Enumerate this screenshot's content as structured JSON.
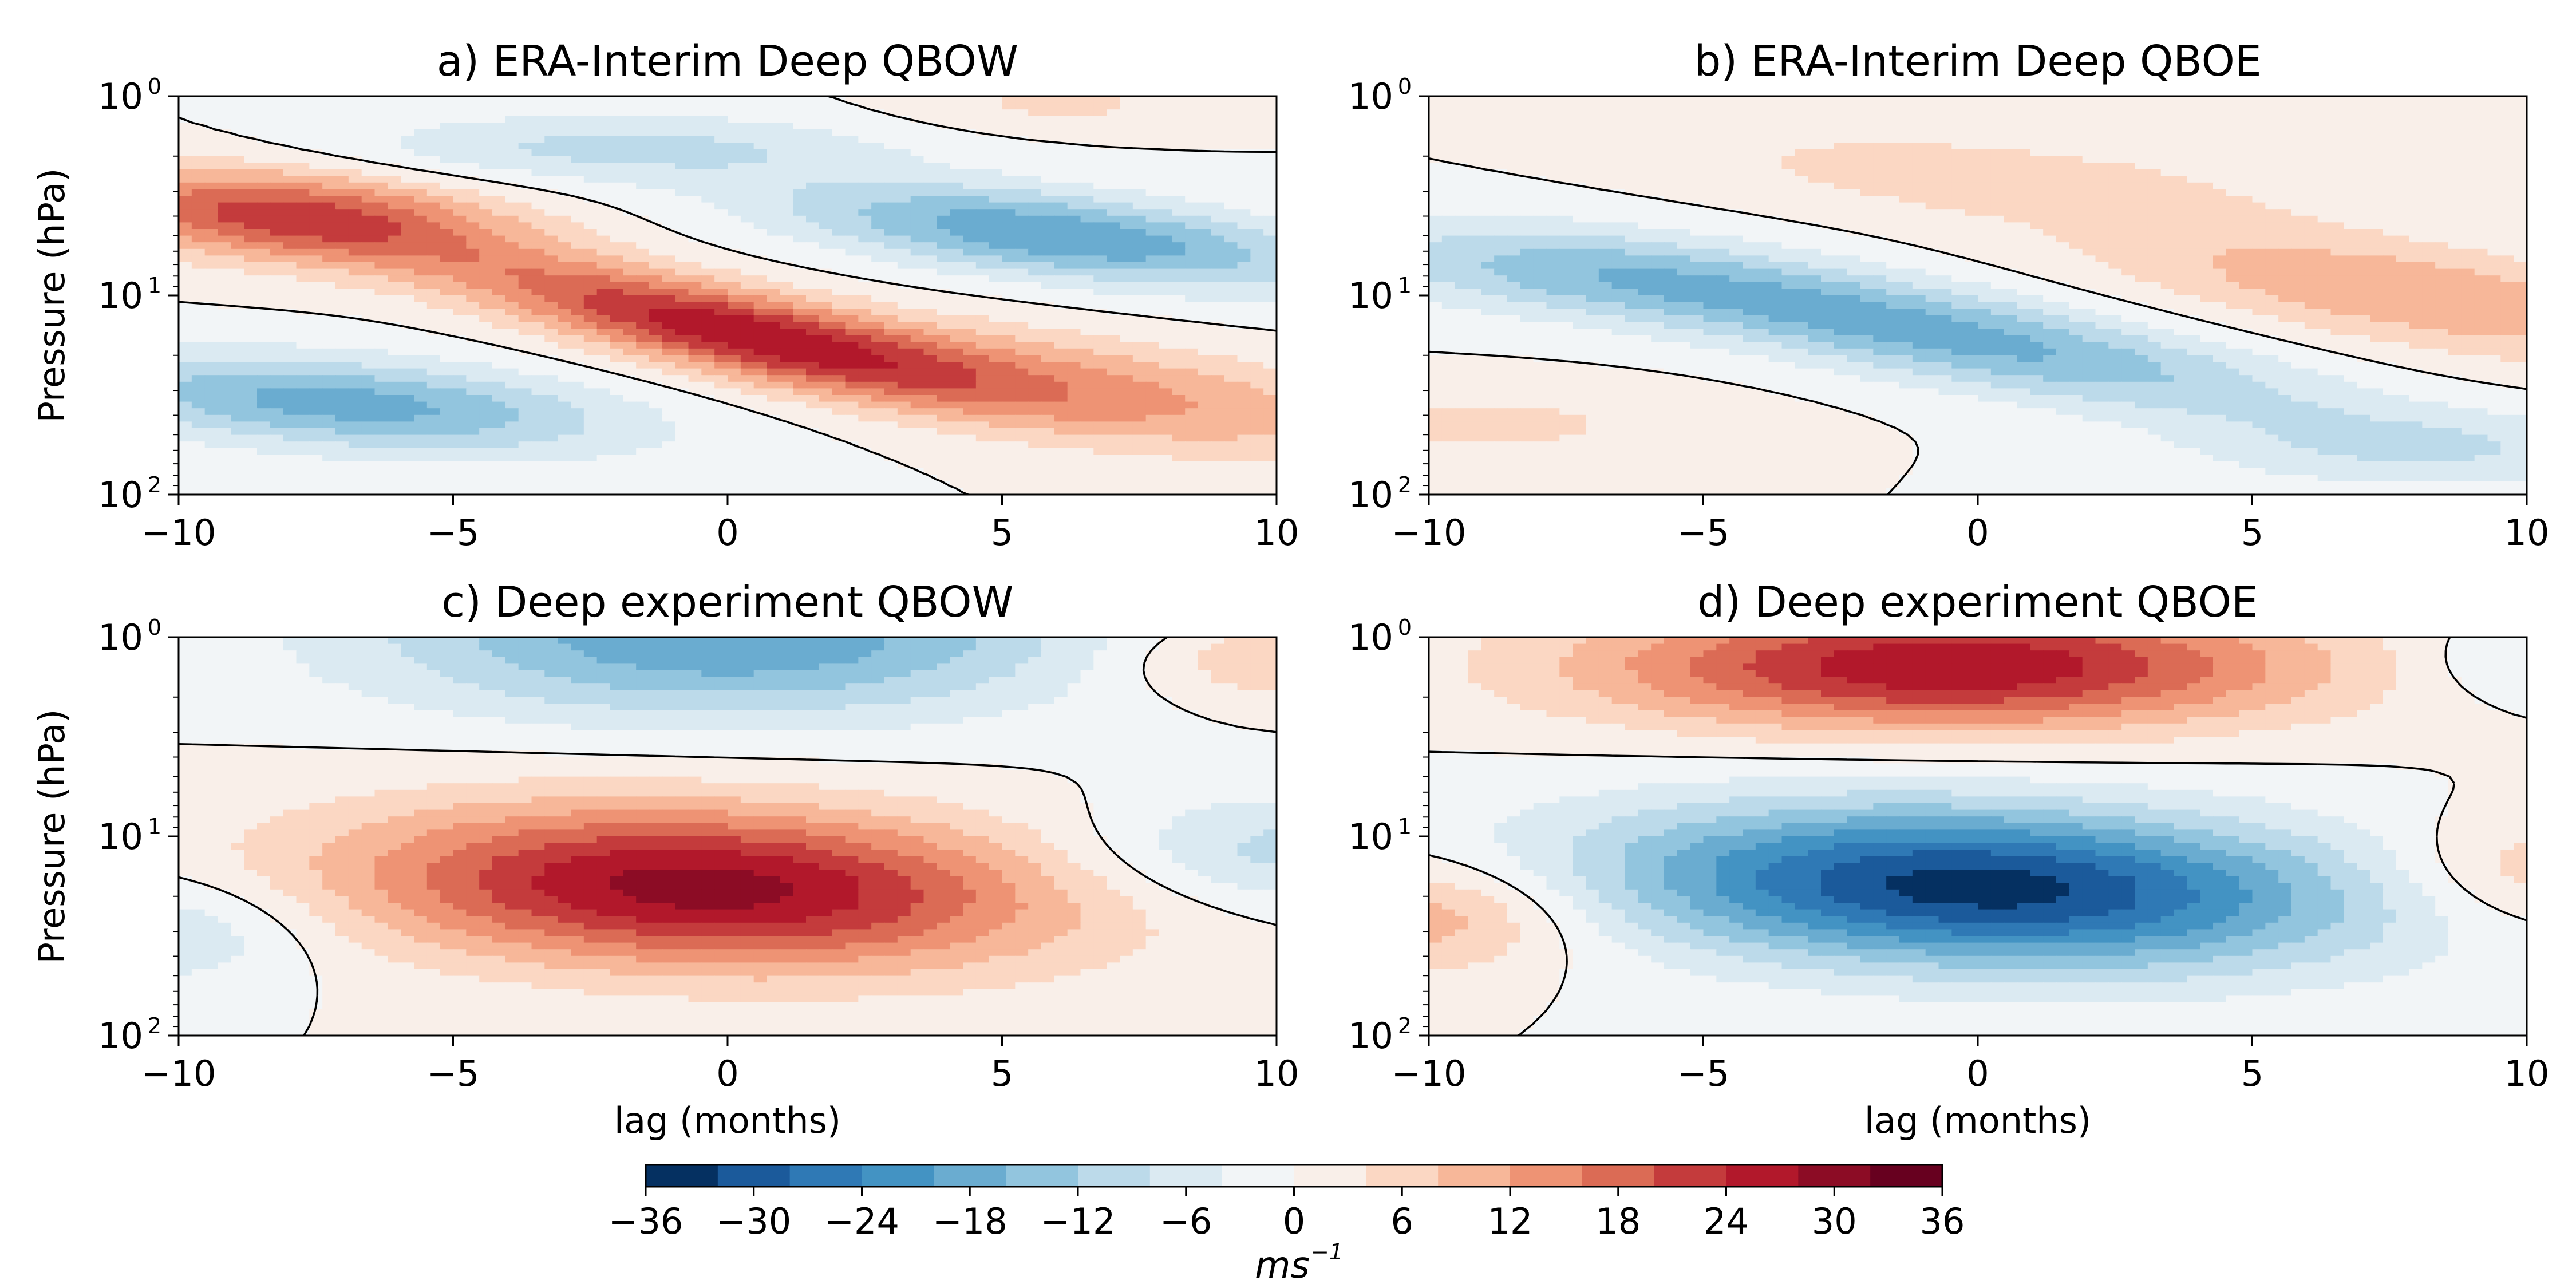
{
  "colors": {
    "scale": [
      "#053061",
      "#1b5a9b",
      "#2f79b5",
      "#4393c3",
      "#6aacd0",
      "#92c5de",
      "#bcdaea",
      "#dbeaf2",
      "#f2f5f7",
      "#f9efe9",
      "#fbd7c3",
      "#f7b799",
      "#ee9374",
      "#db6b55",
      "#c43b3c",
      "#b2182b",
      "#8c0c25",
      "#67001f"
    ],
    "contour": "#000000",
    "axis": "#000000"
  },
  "panels": [
    {
      "id": "a",
      "title": "a) ERA-Interim Deep QBOW",
      "ylabel": "Pressure (hPa)",
      "xlabel": "",
      "chart_data": {
        "type": "heatmap",
        "title": "a) ERA-Interim Deep QBOW",
        "xlim": [
          -10,
          10
        ],
        "ylim_hPa": [
          100,
          1
        ],
        "y_scale": "log",
        "blobs": [
          {
            "sign": 1,
            "amp": 25,
            "lag": 0,
            "p": 15,
            "spread_lag": 3.5,
            "spread_logp": 0.15,
            "tilt": 0.06
          },
          {
            "sign": 1,
            "amp": 22,
            "lag": -8,
            "p": 4,
            "spread_lag": 2.8,
            "spread_logp": 0.16,
            "tilt": 0.02
          },
          {
            "sign": 1,
            "amp": 12,
            "lag": 7,
            "p": 30,
            "spread_lag": 4,
            "spread_logp": 0.18,
            "tilt": 0.04
          },
          {
            "sign": -1,
            "amp": 20,
            "lag": 6,
            "p": 5,
            "spread_lag": 3.5,
            "spread_logp": 0.15,
            "tilt": 0.03
          },
          {
            "sign": -1,
            "amp": 18,
            "lag": -7,
            "p": 35,
            "spread_lag": 3.5,
            "spread_logp": 0.16,
            "tilt": 0.02
          },
          {
            "sign": -1,
            "amp": 9,
            "lag": -2,
            "p": 1.8,
            "spread_lag": 3.5,
            "spread_logp": 0.12,
            "tilt": 0.0
          },
          {
            "sign": 1,
            "amp": 5,
            "lag": 6,
            "p": 1.1,
            "spread_lag": 2,
            "spread_logp": 0.1,
            "tilt": 0.0
          }
        ]
      }
    },
    {
      "id": "b",
      "title": "b) ERA-Interim Deep QBOE",
      "ylabel": "",
      "xlabel": "",
      "chart_data": {
        "type": "heatmap",
        "title": "b) ERA-Interim Deep QBOE",
        "xlim": [
          -10,
          10
        ],
        "ylim_hPa": [
          100,
          1
        ],
        "y_scale": "log",
        "blobs": [
          {
            "sign": -1,
            "amp": 18,
            "lag": -1,
            "p": 15,
            "spread_lag": 5,
            "spread_logp": 0.17,
            "tilt": 0.05
          },
          {
            "sign": -1,
            "amp": 8,
            "lag": -8,
            "p": 8,
            "spread_lag": 3,
            "spread_logp": 0.15,
            "tilt": 0.02
          },
          {
            "sign": 1,
            "amp": 12,
            "lag": 8,
            "p": 10,
            "spread_lag": 4,
            "spread_logp": 0.18,
            "tilt": 0.04
          },
          {
            "sign": 1,
            "amp": 6,
            "lag": 0,
            "p": 2.5,
            "spread_lag": 4,
            "spread_logp": 0.15,
            "tilt": 0.02
          },
          {
            "sign": 1,
            "amp": 5,
            "lag": -9,
            "p": 45,
            "spread_lag": 3,
            "spread_logp": 0.14,
            "tilt": 0.0
          },
          {
            "sign": -1,
            "amp": 7,
            "lag": 8,
            "p": 60,
            "spread_lag": 3,
            "spread_logp": 0.14,
            "tilt": 0.0
          }
        ]
      }
    },
    {
      "id": "c",
      "title": "c) Deep experiment QBOW",
      "ylabel": "Pressure (hPa)",
      "xlabel": "lag (months)",
      "chart_data": {
        "type": "heatmap",
        "title": "c) Deep experiment QBOW",
        "xlim": [
          -10,
          10
        ],
        "ylim_hPa": [
          100,
          1
        ],
        "y_scale": "log",
        "blobs": [
          {
            "sign": 1,
            "amp": 30,
            "lag": -0.5,
            "p": 18,
            "spread_lag": 4.5,
            "spread_logp": 0.28,
            "tilt": 0.01
          },
          {
            "sign": -1,
            "amp": 20,
            "lag": 0,
            "p": 1,
            "spread_lag": 4.5,
            "spread_logp": 0.28,
            "tilt": 0.0
          },
          {
            "sign": -1,
            "amp": 10,
            "lag": 10,
            "p": 12,
            "spread_lag": 2.5,
            "spread_logp": 0.2,
            "tilt": 0.0
          },
          {
            "sign": -1,
            "amp": 8,
            "lag": -10,
            "p": 30,
            "spread_lag": 1.8,
            "spread_logp": 0.2,
            "tilt": 0.0
          },
          {
            "sign": 1,
            "amp": 9,
            "lag": 10,
            "p": 1.3,
            "spread_lag": 2,
            "spread_logp": 0.15,
            "tilt": 0.0
          }
        ]
      }
    },
    {
      "id": "d",
      "title": "d) Deep experiment QBOE",
      "ylabel": "",
      "xlabel": "lag (months)",
      "chart_data": {
        "type": "heatmap",
        "title": "d) Deep experiment QBOE",
        "xlim": [
          -10,
          10
        ],
        "ylim_hPa": [
          100,
          1
        ],
        "y_scale": "log",
        "blobs": [
          {
            "sign": -1,
            "amp": 34,
            "lag": 0,
            "p": 18,
            "spread_lag": 4.8,
            "spread_logp": 0.28,
            "tilt": 0.01
          },
          {
            "sign": 1,
            "amp": 28,
            "lag": -0.5,
            "p": 1.4,
            "spread_lag": 4.5,
            "spread_logp": 0.22,
            "tilt": 0.0
          },
          {
            "sign": 1,
            "amp": 12,
            "lag": -10,
            "p": 25,
            "spread_lag": 2,
            "spread_logp": 0.2,
            "tilt": 0.0
          },
          {
            "sign": 1,
            "amp": 8,
            "lag": 10,
            "p": 15,
            "spread_lag": 1.8,
            "spread_logp": 0.2,
            "tilt": 0.0
          },
          {
            "sign": -1,
            "amp": 6,
            "lag": 10,
            "p": 1.3,
            "spread_lag": 1.5,
            "spread_logp": 0.15,
            "tilt": 0.0
          }
        ]
      }
    }
  ],
  "x_ticks": [
    "−10",
    "−5",
    "0",
    "5",
    "10"
  ],
  "x_tick_values": [
    -10,
    -5,
    0,
    5,
    10
  ],
  "y_ticks": [
    {
      "base": "10",
      "exp": "0",
      "value": 1
    },
    {
      "base": "10",
      "exp": "1",
      "value": 10
    },
    {
      "base": "10",
      "exp": "2",
      "value": 100
    }
  ],
  "colorbar": {
    "levels": [
      -36,
      -32,
      -28,
      -24,
      -20,
      -16,
      -12,
      -8,
      -4,
      0,
      4,
      8,
      12,
      16,
      20,
      24,
      28,
      32,
      36
    ],
    "tick_labels": [
      "−36",
      "−30",
      "−24",
      "−18",
      "−12",
      "−6",
      "0",
      "6",
      "12",
      "18",
      "24",
      "30",
      "36"
    ],
    "tick_values": [
      -36,
      -30,
      -24,
      -18,
      -12,
      -6,
      0,
      6,
      12,
      18,
      24,
      30,
      36
    ],
    "unit_base": "ms",
    "unit_exp": "−1",
    "range": [
      -36,
      36
    ]
  }
}
